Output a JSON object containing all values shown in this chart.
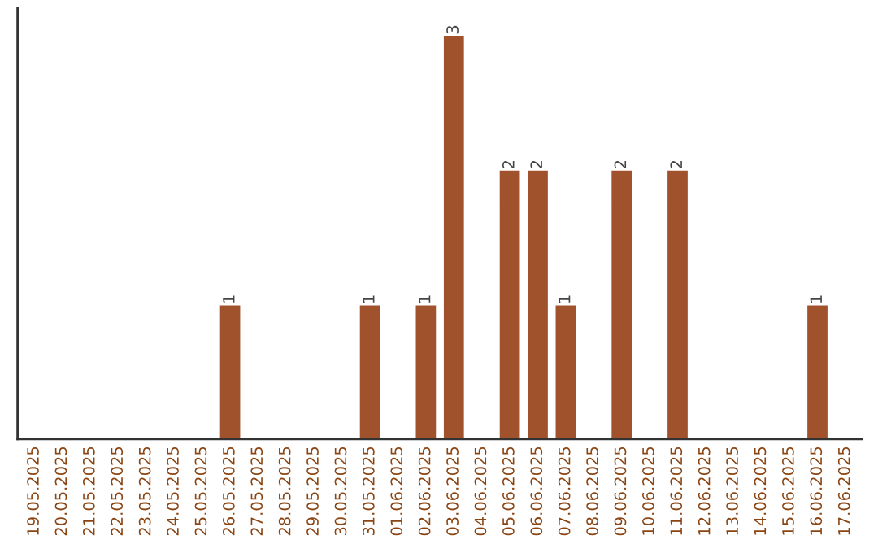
{
  "chart_data": {
    "type": "bar",
    "categories": [
      "19.05.2025",
      "20.05.2025",
      "21.05.2025",
      "22.05.2025",
      "23.05.2025",
      "24.05.2025",
      "25.05.2025",
      "26.05.2025",
      "27.05.2025",
      "28.05.2025",
      "29.05.2025",
      "30.05.2025",
      "31.05.2025",
      "01.06.2025",
      "02.06.2025",
      "03.06.2025",
      "04.06.2025",
      "05.06.2025",
      "06.06.2025",
      "07.06.2025",
      "08.06.2025",
      "09.06.2025",
      "10.06.2025",
      "11.06.2025",
      "12.06.2025",
      "13.06.2025",
      "14.06.2025",
      "15.06.2025",
      "16.06.2025",
      "17.06.2025"
    ],
    "values": [
      null,
      null,
      null,
      null,
      null,
      null,
      null,
      1,
      null,
      null,
      null,
      null,
      1,
      null,
      1,
      3,
      null,
      2,
      2,
      1,
      null,
      2,
      null,
      2,
      null,
      null,
      null,
      null,
      1,
      null
    ],
    "value_labels": [
      null,
      null,
      null,
      null,
      null,
      null,
      null,
      "1",
      null,
      null,
      null,
      null,
      "1",
      null,
      "1",
      "3",
      null,
      "2",
      "2",
      "1",
      null,
      "2",
      null,
      "2",
      null,
      null,
      null,
      null,
      "1",
      null
    ],
    "color": "#a0522d",
    "relative": false,
    "ylim": [
      0,
      3.2
    ],
    "tick_labels": "x",
    "grid": false
  }
}
